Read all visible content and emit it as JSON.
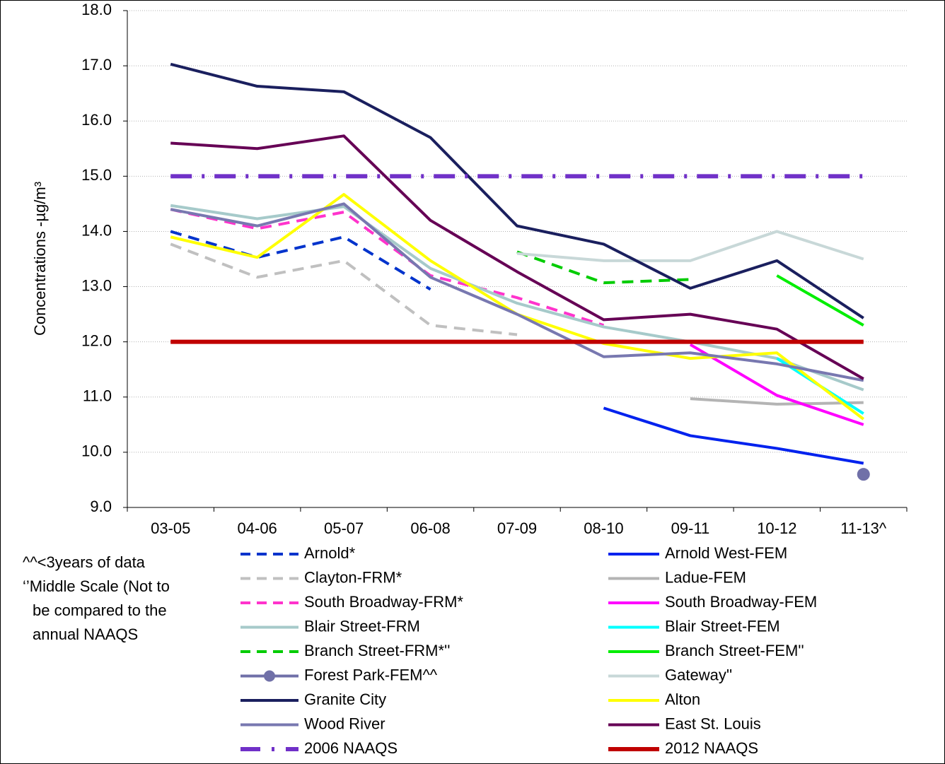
{
  "chart_data": {
    "type": "line",
    "y_label": "Concentrations -µg/m³",
    "categories": [
      "03-05",
      "04-06",
      "05-07",
      "06-08",
      "07-09",
      "08-10",
      "09-11",
      "10-12",
      "11-13^"
    ],
    "ylim": [
      9,
      18
    ],
    "yticks": [
      {
        "value": 9,
        "label": "9.0"
      },
      {
        "value": 10,
        "label": "10.0"
      },
      {
        "value": 11,
        "label": "11.0"
      },
      {
        "value": 12,
        "label": "12.0"
      },
      {
        "value": 13,
        "label": "13.0"
      },
      {
        "value": 14,
        "label": "14.0"
      },
      {
        "value": 15,
        "label": "15.0"
      },
      {
        "value": 16,
        "label": "16.0"
      },
      {
        "value": 17,
        "label": "17.0"
      },
      {
        "value": 18,
        "label": "18.0"
      }
    ],
    "grid": true,
    "notes": [
      "^^<3years of data",
      "‘’Middle Scale (Not to",
      "be compared to the",
      "annual NAAQS"
    ],
    "series": [
      {
        "name": "Arnold*",
        "color": "#0033cc",
        "dash": "dash",
        "values": [
          14.0,
          13.53,
          13.9,
          12.95,
          null,
          null,
          null,
          null,
          null
        ]
      },
      {
        "name": "Arnold West-FEM",
        "color": "#0022ee",
        "values": [
          null,
          null,
          null,
          null,
          null,
          10.8,
          10.3,
          10.07,
          9.8
        ]
      },
      {
        "name": "Clayton-FRM*",
        "color": "#c0c0c0",
        "dash": "dash",
        "values": [
          13.77,
          13.17,
          13.47,
          12.3,
          12.13,
          null,
          null,
          null,
          null
        ]
      },
      {
        "name": "Ladue-FEM",
        "color": "#b4b4b4",
        "values": [
          null,
          null,
          null,
          null,
          null,
          null,
          10.97,
          10.87,
          10.9
        ]
      },
      {
        "name": "South Broadway-FRM*",
        "color": "#ff33cc",
        "dash": "dash",
        "values": [
          14.4,
          14.05,
          14.35,
          13.2,
          12.8,
          12.3,
          null,
          null,
          null
        ]
      },
      {
        "name": "South Broadway-FEM",
        "color": "#ff00ff",
        "values": [
          null,
          null,
          null,
          null,
          null,
          null,
          11.95,
          11.03,
          10.5
        ]
      },
      {
        "name": "Blair Street-FRM",
        "color": "#a6caca",
        "values": [
          14.47,
          14.23,
          14.45,
          13.33,
          12.7,
          12.27,
          12.0,
          11.7,
          11.13
        ]
      },
      {
        "name": "Blair Street-FEM",
        "color": "#00ffff",
        "values": [
          null,
          null,
          null,
          null,
          null,
          null,
          null,
          11.7,
          10.7
        ]
      },
      {
        "name": "Branch Street-FRM*''",
        "color": "#00cc00",
        "dash": "dash",
        "values": [
          null,
          null,
          null,
          null,
          13.63,
          13.07,
          13.13,
          null,
          null
        ]
      },
      {
        "name": "Branch Street-FEM''",
        "color": "#00ee00",
        "values": [
          null,
          null,
          null,
          null,
          null,
          null,
          null,
          13.2,
          12.3
        ]
      },
      {
        "name": "Forest Park-FEM^^",
        "color": "#7070a8",
        "marker": "circle",
        "values": [
          null,
          null,
          null,
          null,
          null,
          null,
          null,
          null,
          9.6
        ]
      },
      {
        "name": "Gateway''",
        "color": "#c8d8d8",
        "values": [
          null,
          null,
          null,
          null,
          13.6,
          13.47,
          13.47,
          14.0,
          13.5
        ]
      },
      {
        "name": "Granite City",
        "color": "#1a1f5e",
        "values": [
          17.03,
          16.63,
          16.53,
          15.7,
          14.1,
          13.77,
          12.97,
          13.47,
          12.43
        ]
      },
      {
        "name": "Alton",
        "color": "#ffff00",
        "values": [
          13.9,
          13.53,
          14.67,
          13.47,
          12.5,
          11.97,
          11.7,
          11.8,
          10.6
        ]
      },
      {
        "name": "Wood River",
        "color": "#7878b0",
        "values": [
          14.4,
          14.1,
          14.5,
          13.17,
          12.5,
          11.73,
          11.8,
          11.6,
          11.3
        ]
      },
      {
        "name": "East St. Louis",
        "color": "#660055",
        "values": [
          15.6,
          15.5,
          15.73,
          14.2,
          13.27,
          12.4,
          12.5,
          12.23,
          11.33
        ]
      },
      {
        "name": "2006 NAAQS",
        "color": "#7030c8",
        "dash": "dashdot",
        "width": 6,
        "values": [
          15,
          15,
          15,
          15,
          15,
          15,
          15,
          15,
          15
        ]
      },
      {
        "name": "2012 NAAQS",
        "color": "#c00000",
        "width": 6,
        "values": [
          12,
          12,
          12,
          12,
          12,
          12,
          12,
          12,
          12
        ]
      }
    ]
  }
}
